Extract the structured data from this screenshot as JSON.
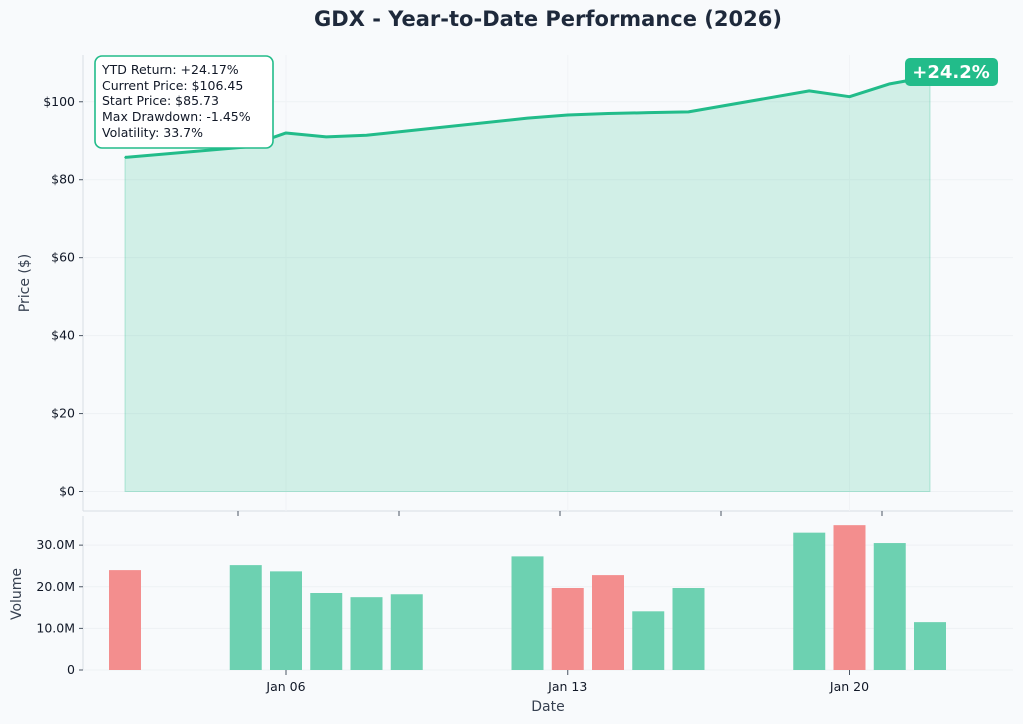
{
  "chart_data": [
    {
      "type": "area",
      "title": "GDX - Year-to-Date Performance (2026)",
      "ylabel": "Price ($)",
      "ylim": [
        -5,
        112
      ],
      "yticks": [
        0,
        20,
        40,
        60,
        80,
        100
      ],
      "ytick_labels": [
        "$0",
        "$20",
        "$40",
        "$60",
        "$80",
        "$100"
      ],
      "grid": true,
      "series": [
        {
          "x": [
            "2026-01-02",
            "2026-01-05",
            "2026-01-06",
            "2026-01-07",
            "2026-01-08",
            "2026-01-09",
            "2026-01-12",
            "2026-01-13",
            "2026-01-14",
            "2026-01-15",
            "2026-01-16",
            "2026-01-19",
            "2026-01-20",
            "2026-01-21",
            "2026-01-22"
          ],
          "values": [
            85.73,
            88.4,
            92.0,
            91.0,
            91.4,
            92.5,
            95.8,
            96.6,
            97.0,
            97.2,
            97.4,
            102.8,
            101.3,
            104.6,
            106.45
          ],
          "color": "#22bc8a"
        }
      ],
      "stats_box": [
        "YTD Return: +24.17%",
        "Current Price: $106.45",
        "Start Price: $85.73",
        "Max Drawdown: -1.45%",
        "Volatility: 33.7%"
      ],
      "badge": "+24.2%"
    },
    {
      "type": "bar",
      "xlabel": "Date",
      "ylabel": "Volume",
      "ylim": [
        0,
        37
      ],
      "yticks": [
        0,
        10,
        20,
        30
      ],
      "ytick_labels": [
        "0",
        "10.0M",
        "20.0M",
        "30.0M"
      ],
      "xticks": [
        "2026-01-06",
        "2026-01-13",
        "2026-01-20"
      ],
      "xtick_labels": [
        "Jan 06",
        "Jan 13",
        "Jan 20"
      ],
      "unit": "millions",
      "bars": [
        {
          "date": "2026-01-02",
          "value": 24.0,
          "direction": "down"
        },
        {
          "date": "2026-01-05",
          "value": 25.2,
          "direction": "up"
        },
        {
          "date": "2026-01-06",
          "value": 23.7,
          "direction": "up"
        },
        {
          "date": "2026-01-07",
          "value": 18.5,
          "direction": "up"
        },
        {
          "date": "2026-01-08",
          "value": 17.5,
          "direction": "up"
        },
        {
          "date": "2026-01-09",
          "value": 18.2,
          "direction": "up"
        },
        {
          "date": "2026-01-12",
          "value": 27.3,
          "direction": "up"
        },
        {
          "date": "2026-01-13",
          "value": 19.7,
          "direction": "down"
        },
        {
          "date": "2026-01-14",
          "value": 22.8,
          "direction": "down"
        },
        {
          "date": "2026-01-15",
          "value": 14.1,
          "direction": "up"
        },
        {
          "date": "2026-01-16",
          "value": 19.7,
          "direction": "up"
        },
        {
          "date": "2026-01-19",
          "value": 33.0,
          "direction": "up"
        },
        {
          "date": "2026-01-20",
          "value": 34.8,
          "direction": "down"
        },
        {
          "date": "2026-01-21",
          "value": 30.5,
          "direction": "up"
        },
        {
          "date": "2026-01-22",
          "value": 11.5,
          "direction": "up"
        }
      ],
      "colors": {
        "up": "#6dd1b1",
        "down": "#f38e8e"
      }
    }
  ]
}
